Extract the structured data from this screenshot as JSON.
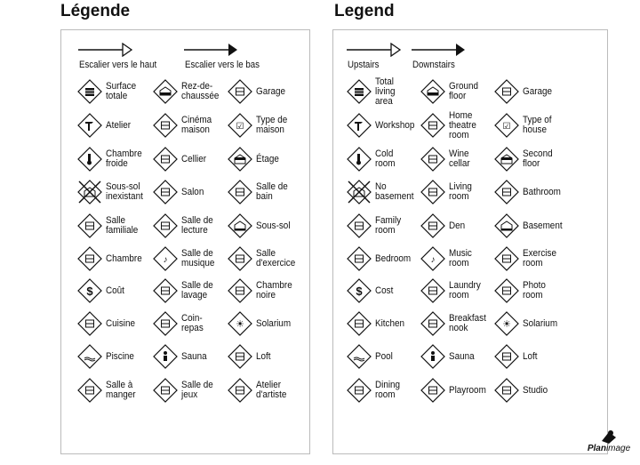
{
  "fr": {
    "title": "Légende",
    "stairs_up": "Escalier vers le haut",
    "stairs_down": "Escalier vers le bas",
    "items": [
      {
        "label": "Surface\ntotale",
        "icon": "total-area-icon"
      },
      {
        "label": "Rez-de-\nchaussée",
        "icon": "ground-floor-icon"
      },
      {
        "label": "Garage",
        "icon": "garage-icon"
      },
      {
        "label": "Atelier",
        "icon": "workshop-icon"
      },
      {
        "label": "Cinéma\nmaison",
        "icon": "home-theatre-icon"
      },
      {
        "label": "Type de\nmaison",
        "icon": "type-of-house-icon"
      },
      {
        "label": "Chambre\nfroide",
        "icon": "cold-room-icon"
      },
      {
        "label": "Cellier",
        "icon": "wine-cellar-icon"
      },
      {
        "label": "Étage",
        "icon": "second-floor-icon"
      },
      {
        "label": "Sous-sol\ninexistant",
        "icon": "no-basement-icon"
      },
      {
        "label": "Salon",
        "icon": "living-room-icon"
      },
      {
        "label": "Salle de\nbain",
        "icon": "bathroom-icon"
      },
      {
        "label": "Salle\nfamiliale",
        "icon": "family-room-icon"
      },
      {
        "label": "Salle de\nlecture",
        "icon": "den-icon"
      },
      {
        "label": "Sous-sol",
        "icon": "basement-icon"
      },
      {
        "label": "Chambre",
        "icon": "bedroom-icon"
      },
      {
        "label": "Salle de\nmusique",
        "icon": "music-room-icon"
      },
      {
        "label": "Salle\nd'exercice",
        "icon": "exercise-room-icon"
      },
      {
        "label": "Coût",
        "icon": "cost-icon"
      },
      {
        "label": "Salle de\nlavage",
        "icon": "laundry-room-icon"
      },
      {
        "label": "Chambre\nnoire",
        "icon": "photo-room-icon"
      },
      {
        "label": "Cuisine",
        "icon": "kitchen-icon"
      },
      {
        "label": "Coin-\nrepas",
        "icon": "breakfast-nook-icon"
      },
      {
        "label": "Solarium",
        "icon": "solarium-icon"
      },
      {
        "label": "Piscine",
        "icon": "pool-icon"
      },
      {
        "label": "Sauna",
        "icon": "sauna-icon"
      },
      {
        "label": "Loft",
        "icon": "loft-icon"
      },
      {
        "label": "Salle à\nmanger",
        "icon": "dining-room-icon"
      },
      {
        "label": "Salle de\njeux",
        "icon": "playroom-icon"
      },
      {
        "label": "Atelier\nd'artiste",
        "icon": "studio-icon"
      }
    ]
  },
  "en": {
    "title": "Legend",
    "stairs_up": "Upstairs",
    "stairs_down": "Downstairs",
    "items": [
      {
        "label": "Total\nliving\narea",
        "icon": "total-area-icon"
      },
      {
        "label": "Ground\nfloor",
        "icon": "ground-floor-icon"
      },
      {
        "label": "Garage",
        "icon": "garage-icon"
      },
      {
        "label": "Workshop",
        "icon": "workshop-icon"
      },
      {
        "label": "Home\ntheatre\nroom",
        "icon": "home-theatre-icon"
      },
      {
        "label": "Type of\nhouse",
        "icon": "type-of-house-icon"
      },
      {
        "label": "Cold\nroom",
        "icon": "cold-room-icon"
      },
      {
        "label": "Wine\ncellar",
        "icon": "wine-cellar-icon"
      },
      {
        "label": "Second\nfloor",
        "icon": "second-floor-icon"
      },
      {
        "label": "No\nbasement",
        "icon": "no-basement-icon"
      },
      {
        "label": "Living\nroom",
        "icon": "living-room-icon"
      },
      {
        "label": "Bathroom",
        "icon": "bathroom-icon"
      },
      {
        "label": "Family\nroom",
        "icon": "family-room-icon"
      },
      {
        "label": "Den",
        "icon": "den-icon"
      },
      {
        "label": "Basement",
        "icon": "basement-icon"
      },
      {
        "label": "Bedroom",
        "icon": "bedroom-icon"
      },
      {
        "label": "Music\nroom",
        "icon": "music-room-icon"
      },
      {
        "label": "Exercise\nroom",
        "icon": "exercise-room-icon"
      },
      {
        "label": "Cost",
        "icon": "cost-icon"
      },
      {
        "label": "Laundry\nroom",
        "icon": "laundry-room-icon"
      },
      {
        "label": "Photo\nroom",
        "icon": "photo-room-icon"
      },
      {
        "label": "Kitchen",
        "icon": "kitchen-icon"
      },
      {
        "label": "Breakfast\nnook",
        "icon": "breakfast-nook-icon"
      },
      {
        "label": "Solarium",
        "icon": "solarium-icon"
      },
      {
        "label": "Pool",
        "icon": "pool-icon"
      },
      {
        "label": "Sauna",
        "icon": "sauna-icon"
      },
      {
        "label": "Loft",
        "icon": "loft-icon"
      },
      {
        "label": "Dining\nroom",
        "icon": "dining-room-icon"
      },
      {
        "label": "Playroom",
        "icon": "playroom-icon"
      },
      {
        "label": "Studio",
        "icon": "studio-icon"
      }
    ]
  },
  "logo": "PlanImage"
}
